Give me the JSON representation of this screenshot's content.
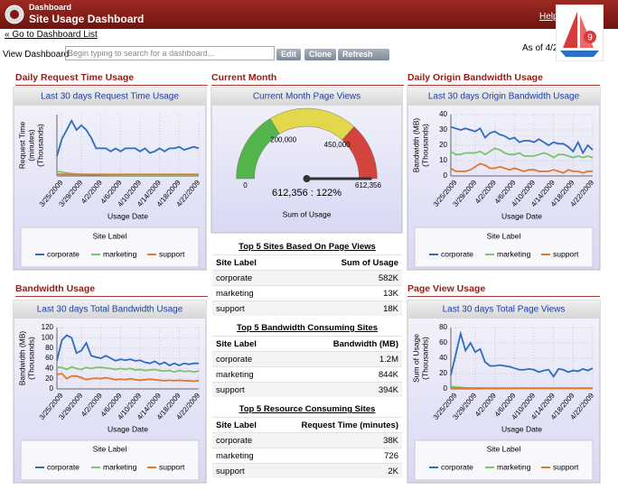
{
  "header": {
    "app": "Dashboard",
    "title": "Site Usage Dashboard",
    "help": "Help"
  },
  "nav": {
    "back_link": "« Go to Dashboard List"
  },
  "toolbar": {
    "label": "View Dashboard",
    "search_placeholder": "Begin typing to search for a dashboard...",
    "buttons": [
      "Edit",
      "Clone",
      "Refresh"
    ],
    "as_of": "As of 4/2"
  },
  "sections": [
    "Daily Request Time Usage",
    "Current Month",
    "Daily Origin Bandwidth Usage",
    "Bandwidth Usage",
    "Page View Usage"
  ],
  "charts": [
    {
      "type": "line",
      "title": "Last 30 days Request Time Usage",
      "y_label": [
        "Request Time",
        "(minutes)",
        "(Thousands)"
      ],
      "x_label": "Usage Date",
      "legend_title": "Site Label",
      "categories": [
        null,
        "3/25/2009",
        null,
        null,
        null,
        "3/29/2009",
        null,
        null,
        null,
        "4/2/2009",
        null,
        null,
        null,
        "4/6/2009",
        null,
        null,
        null,
        "4/10/2009",
        null,
        null,
        null,
        "4/14/2009",
        null,
        null,
        null,
        "4/18/2009",
        null,
        null,
        null,
        "4/22/2009"
      ],
      "ylim": [
        0,
        4
      ],
      "yticks": [],
      "series": [
        {
          "name": "corporate",
          "color": "#2d6cc0",
          "values": [
            1.3,
            2.4,
            3,
            3.6,
            3,
            3.3,
            3,
            2.5,
            1.8,
            1.8,
            1.8,
            1.6,
            1.8,
            1.6,
            1.8,
            1.8,
            1.8,
            1.6,
            1.8,
            1.5,
            1.6,
            1.8,
            1.6,
            1.8,
            1.8,
            1.9,
            1.7,
            1.8,
            1.9,
            1.8
          ]
        },
        {
          "name": "marketing",
          "color": "#7cc36b",
          "values": [
            0.3,
            0.25,
            0.2,
            0.15,
            0.12,
            0.1,
            0.1,
            0.08,
            0.08,
            0.07,
            0.07,
            0.06,
            0.06,
            0.06,
            0.05,
            0.05,
            0.05,
            0.05,
            0.05,
            0.05,
            0.05,
            0.05,
            0.05,
            0.05,
            0.05,
            0.05,
            0.05,
            0.05,
            0.05,
            0.05
          ]
        },
        {
          "name": "support",
          "color": "#e0782a",
          "values": [
            0.12,
            0.1,
            0.1,
            0.1,
            0.1,
            0.1,
            0.1,
            0.1,
            0.1,
            0.1,
            0.1,
            0.1,
            0.1,
            0.1,
            0.1,
            0.1,
            0.1,
            0.1,
            0.1,
            0.1,
            0.1,
            0.1,
            0.1,
            0.1,
            0.1,
            0.1,
            0.1,
            0.1,
            0.1,
            0.1
          ]
        }
      ]
    },
    {
      "type": "line",
      "title": "Last 30 days Origin Bandwidth Usage",
      "y_label": [
        "Bandwidth (MB)",
        "(Thousands)"
      ],
      "x_label": "Usage Date",
      "legend_title": "Site Label",
      "categories": [
        null,
        "3/25/2009",
        null,
        null,
        null,
        "3/29/2009",
        null,
        null,
        null,
        "4/2/2009",
        null,
        null,
        null,
        "4/6/2009",
        null,
        null,
        null,
        "4/10/2009",
        null,
        null,
        null,
        "4/14/2009",
        null,
        null,
        null,
        "4/18/2009",
        null,
        null,
        null,
        "4/22/2009"
      ],
      "ylim": [
        0,
        40
      ],
      "yticks": [
        0,
        10,
        20,
        30,
        40
      ],
      "series": [
        {
          "name": "corporate",
          "color": "#2d6cc0",
          "values": [
            32,
            31,
            30,
            31,
            30,
            29,
            31,
            25,
            28,
            29,
            27,
            26,
            24,
            25,
            22,
            23,
            23,
            22,
            24,
            22,
            20,
            22,
            21,
            21,
            19,
            16,
            22,
            15,
            20,
            17
          ]
        },
        {
          "name": "marketing",
          "color": "#7cc36b",
          "values": [
            16,
            14,
            14,
            15,
            15,
            15,
            16,
            14,
            16,
            18,
            17,
            15,
            14,
            14,
            15,
            13,
            13,
            13,
            14,
            15,
            14,
            12,
            14,
            14,
            13,
            12,
            13,
            12,
            13,
            12
          ]
        },
        {
          "name": "support",
          "color": "#e0782a",
          "values": [
            5,
            3,
            3,
            3,
            4,
            6,
            8,
            7,
            5,
            5,
            6,
            5,
            4,
            5,
            4,
            3,
            4,
            4,
            3,
            3,
            3,
            4,
            3,
            2,
            4,
            3,
            3,
            2,
            3,
            3
          ]
        }
      ]
    },
    {
      "type": "line",
      "title": "Last 30 days Total Bandwidth Usage",
      "y_label": [
        "Bandwidth (MB)",
        "(Thousands)"
      ],
      "x_label": "Usage Date",
      "legend_title": "Site Label",
      "categories": [
        null,
        "3/25/2009",
        null,
        null,
        null,
        "3/29/2009",
        null,
        null,
        null,
        "4/2/2009",
        null,
        null,
        null,
        "4/6/2009",
        null,
        null,
        null,
        "4/10/2009",
        null,
        null,
        null,
        "4/14/2009",
        null,
        null,
        null,
        "4/18/2009",
        null,
        null,
        null,
        "4/22/2009"
      ],
      "ylim": [
        0,
        120
      ],
      "yticks": [
        0,
        20,
        40,
        60,
        80,
        100,
        120
      ],
      "series": [
        {
          "name": "corporate",
          "color": "#2d6cc0",
          "values": [
            55,
            95,
            105,
            100,
            70,
            75,
            90,
            65,
            62,
            60,
            65,
            60,
            55,
            58,
            56,
            58,
            55,
            56,
            52,
            50,
            54,
            48,
            52,
            46,
            50,
            46,
            50,
            48,
            50,
            50
          ]
        },
        {
          "name": "marketing",
          "color": "#7cc36b",
          "values": [
            42,
            42,
            38,
            43,
            40,
            38,
            42,
            40,
            42,
            42,
            41,
            40,
            38,
            40,
            38,
            40,
            37,
            38,
            36,
            37,
            38,
            36,
            35,
            36,
            33,
            36,
            34,
            35,
            33,
            35
          ]
        },
        {
          "name": "support",
          "color": "#e0782a",
          "values": [
            28,
            30,
            20,
            25,
            25,
            22,
            18,
            20,
            21,
            20,
            22,
            20,
            18,
            19,
            18,
            20,
            18,
            17,
            18,
            19,
            18,
            17,
            16,
            17,
            16,
            17,
            16,
            16,
            15,
            16
          ]
        }
      ]
    },
    {
      "type": "line",
      "title": "Last 30 days Total Page Views",
      "y_label": [
        "Sum of Usage",
        "(Thousands)"
      ],
      "x_label": "Usage Date",
      "legend_title": "Site Label",
      "categories": [
        null,
        "3/25/2009",
        null,
        null,
        null,
        "3/29/2009",
        null,
        null,
        null,
        "4/2/2009",
        null,
        null,
        null,
        "4/6/2009",
        null,
        null,
        null,
        "4/10/2009",
        null,
        null,
        null,
        "4/14/2009",
        null,
        null,
        null,
        "4/18/2009",
        null,
        null,
        null,
        "4/22/2009"
      ],
      "ylim": [
        0,
        80
      ],
      "yticks": [
        0,
        20,
        40,
        60,
        80
      ],
      "series": [
        {
          "name": "corporate",
          "color": "#2d6cc0",
          "values": [
            18,
            45,
            72,
            50,
            60,
            48,
            52,
            35,
            30,
            30,
            31,
            30,
            29,
            27,
            25,
            25,
            26,
            25,
            22,
            24,
            25,
            16,
            26,
            25,
            22,
            24,
            23,
            26,
            24,
            27
          ]
        },
        {
          "name": "marketing",
          "color": "#7cc36b",
          "values": [
            3,
            2.5,
            2,
            1.5,
            1.2,
            1,
            1,
            0.8,
            0.8,
            0.7,
            0.7,
            0.6,
            0.6,
            0.6,
            0.5,
            0.5,
            0.5,
            0.5,
            0.5,
            0.5,
            0.5,
            0.5,
            0.5,
            0.5,
            0.5,
            0.5,
            0.5,
            0.5,
            0.5,
            0.5
          ]
        },
        {
          "name": "support",
          "color": "#e0782a",
          "values": [
            1,
            1,
            1,
            1,
            1,
            1,
            1,
            1,
            1,
            1,
            1,
            1,
            1,
            1,
            1,
            1,
            1,
            1,
            1,
            1,
            1,
            1,
            1,
            1,
            1,
            1,
            1,
            1,
            1,
            1
          ]
        }
      ]
    }
  ],
  "gauge": {
    "type": "gauge",
    "title": "Current Month Page Views",
    "label": "Sum of Usage",
    "lim": [
      0,
      612356
    ],
    "ticks": [
      0,
      {
        "value": 200000,
        "label": "200,000"
      },
      {
        "value": 450000,
        "label": "450,000"
      },
      {
        "value": 612356,
        "label": "612,356"
      }
    ],
    "colors": [
      "#52b44a",
      "#e3d84c",
      "#d2443c"
    ],
    "value": 612356,
    "value_label": "612,356 : 122%"
  },
  "tables": [
    {
      "title": "Top 5 Sites Based On Page Views",
      "columns": [
        "Site Label",
        "Sum of Usage"
      ],
      "rows": [
        [
          "corporate",
          "582K"
        ],
        [
          "marketing",
          "13K"
        ],
        [
          "support",
          "18K"
        ]
      ]
    },
    {
      "title": "Top 5 Bandwidth Consuming Sites",
      "columns": [
        "Site Label",
        "Bandwidth (MB)"
      ],
      "rows": [
        [
          "corporate",
          "1.2M"
        ],
        [
          "marketing",
          "844K"
        ],
        [
          "support",
          "394K"
        ]
      ]
    },
    {
      "title": "Top 5 Resource Consuming Sites",
      "columns": [
        "Site Label",
        "Request Time (minutes)"
      ],
      "rows": [
        [
          "corporate",
          "38K"
        ],
        [
          "marketing",
          "726"
        ],
        [
          "support",
          "2K"
        ]
      ]
    }
  ]
}
